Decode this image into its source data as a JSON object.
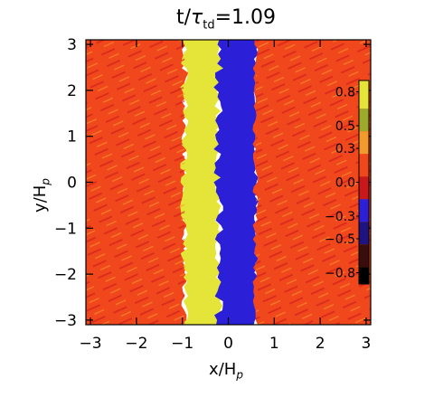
{
  "chart_data": {
    "type": "heatmap",
    "title": {
      "base": "t/",
      "greek": "τ",
      "sub": "td",
      "value": "=1.09"
    },
    "xlabel": {
      "base": "x/H",
      "sub": "p"
    },
    "ylabel": {
      "base": "y/H",
      "sub": "p"
    },
    "xlim": [
      -3.1,
      3.1
    ],
    "ylim": [
      -3.1,
      3.1
    ],
    "x_ticks": [
      "−3",
      "−2",
      "−1",
      "0",
      "1",
      "2",
      "3"
    ],
    "x_tick_values": [
      -3,
      -2,
      -1,
      0,
      1,
      2,
      3
    ],
    "y_ticks": [
      "−3",
      "−2",
      "−1",
      "0",
      "1",
      "2",
      "3"
    ],
    "y_tick_values": [
      -3,
      -2,
      -1,
      0,
      1,
      2,
      3
    ],
    "colorbar": {
      "range": [
        -0.9,
        0.9
      ],
      "tick_labels": [
        "0.8",
        "0.5",
        "0.3",
        "0.0",
        "−0.3",
        "−0.5",
        "−0.8"
      ],
      "tick_values": [
        0.8,
        0.5,
        0.3,
        0.0,
        -0.3,
        -0.5,
        -0.8
      ],
      "bands": [
        {
          "from": 0.65,
          "to": 0.9,
          "color": "#e5e539"
        },
        {
          "from": 0.45,
          "to": 0.65,
          "color": "#9caa2c"
        },
        {
          "from": 0.25,
          "to": 0.45,
          "color": "#f39a2c"
        },
        {
          "from": 0.05,
          "to": 0.25,
          "color": "#f1471d"
        },
        {
          "from": -0.15,
          "to": 0.05,
          "color": "#c9181b"
        },
        {
          "from": -0.35,
          "to": -0.15,
          "color": "#2b1fd8"
        },
        {
          "from": -0.55,
          "to": -0.35,
          "color": "#1d1482"
        },
        {
          "from": -0.75,
          "to": -0.55,
          "color": "#3a0d0d"
        },
        {
          "from": -0.9,
          "to": -0.75,
          "color": "#000000"
        }
      ]
    },
    "regions": [
      {
        "name": "left-hot",
        "x_from": -3.1,
        "x_to": -0.95,
        "value": 0.15,
        "color": "#f1471d"
      },
      {
        "name": "yellow-band",
        "x_from": -0.95,
        "x_to": -0.2,
        "value": 0.8,
        "color": "#e5e539"
      },
      {
        "name": "blue-band",
        "x_from": -0.2,
        "x_to": 0.6,
        "value": -0.3,
        "color": "#2b1fd8"
      },
      {
        "name": "right-hot",
        "x_from": 0.6,
        "x_to": 3.1,
        "value": 0.15,
        "color": "#f1471d"
      }
    ]
  }
}
